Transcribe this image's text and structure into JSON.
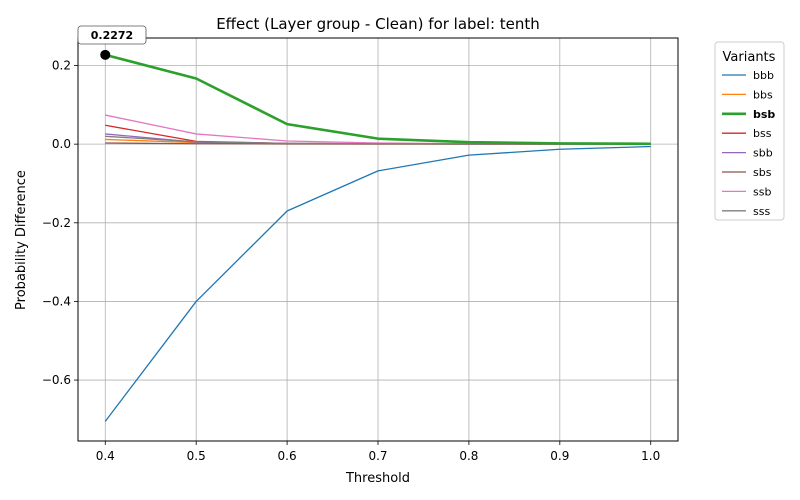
{
  "chart_data": {
    "type": "line",
    "title": "Effect (Layer group - Clean) for label: tenth",
    "xlabel": "Threshold",
    "ylabel": "Probability Difference",
    "x": [
      0.4,
      0.5,
      0.6,
      0.7,
      0.8,
      0.9,
      1.0
    ],
    "x_ticks": [
      0.4,
      0.5,
      0.6,
      0.7,
      0.8,
      0.9,
      1.0
    ],
    "x_tick_labels": [
      "0.4",
      "0.5",
      "0.6",
      "0.7",
      "0.8",
      "0.9",
      "1.0"
    ],
    "y_ticks": [
      -0.6,
      -0.4,
      -0.2,
      0.0,
      0.2
    ],
    "y_tick_labels": [
      "−0.6",
      "−0.4",
      "−0.2",
      "0.0",
      "0.2"
    ],
    "xlim": [
      0.37,
      1.03
    ],
    "ylim": [
      -0.755,
      0.27
    ],
    "grid": true,
    "legend": {
      "title": "Variants",
      "placement": "outside-right"
    },
    "highlight": {
      "series": "bsb",
      "x": 0.4,
      "y": 0.2272,
      "label": "0.2272"
    },
    "series": [
      {
        "name": "bbb",
        "color": "#1f77b4",
        "values": [
          -0.705,
          -0.4,
          -0.17,
          -0.068,
          -0.028,
          -0.013,
          -0.006
        ]
      },
      {
        "name": "bbs",
        "color": "#ff7f0e",
        "values": [
          0.012,
          0.004,
          0.001,
          0.0005,
          0.0002,
          0.0001,
          0.0
        ]
      },
      {
        "name": "bsb",
        "color": "#2ca02c",
        "bold": true,
        "values": [
          0.2272,
          0.167,
          0.051,
          0.014,
          0.005,
          0.002,
          0.001
        ]
      },
      {
        "name": "bss",
        "color": "#d62728",
        "values": [
          0.048,
          0.007,
          0.002,
          0.001,
          0.0005,
          0.0002,
          0.0001
        ]
      },
      {
        "name": "sbb",
        "color": "#9467bd",
        "values": [
          0.026,
          0.005,
          0.002,
          0.001,
          0.0005,
          0.0002,
          0.0001
        ]
      },
      {
        "name": "sbs",
        "color": "#8c564b",
        "values": [
          0.003,
          0.001,
          0.0005,
          0.0002,
          0.0001,
          0.0,
          0.0
        ]
      },
      {
        "name": "ssb",
        "color": "#e377c2",
        "values": [
          0.074,
          0.026,
          0.008,
          0.003,
          0.001,
          0.0005,
          0.0002
        ]
      },
      {
        "name": "sss",
        "color": "#7f7f7f",
        "values": [
          0.02,
          0.006,
          0.002,
          0.001,
          0.0005,
          0.0002,
          0.0001
        ]
      }
    ]
  }
}
